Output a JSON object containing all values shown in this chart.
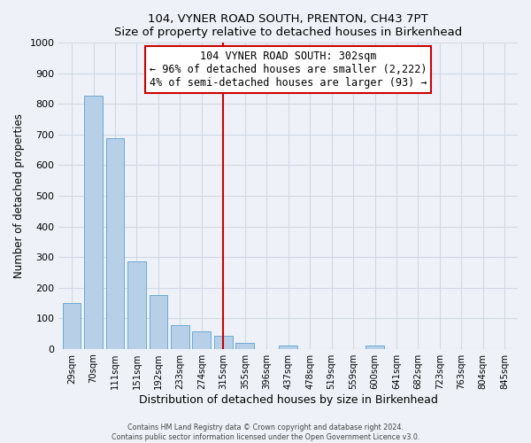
{
  "title": "104, VYNER ROAD SOUTH, PRENTON, CH43 7PT",
  "subtitle": "Size of property relative to detached houses in Birkenhead",
  "xlabel": "Distribution of detached houses by size in Birkenhead",
  "ylabel": "Number of detached properties",
  "bar_labels": [
    "29sqm",
    "70sqm",
    "111sqm",
    "151sqm",
    "192sqm",
    "233sqm",
    "274sqm",
    "315sqm",
    "355sqm",
    "396sqm",
    "437sqm",
    "478sqm",
    "519sqm",
    "559sqm",
    "600sqm",
    "641sqm",
    "682sqm",
    "723sqm",
    "763sqm",
    "804sqm",
    "845sqm"
  ],
  "bar_heights": [
    150,
    828,
    688,
    285,
    175,
    78,
    57,
    43,
    18,
    0,
    10,
    0,
    0,
    0,
    10,
    0,
    0,
    0,
    0,
    0,
    0
  ],
  "bar_color": "#b8cfe8",
  "bar_edge_color": "#6aaad4",
  "vline_x": 7.0,
  "vline_color": "#cc0000",
  "annotation_title": "104 VYNER ROAD SOUTH: 302sqm",
  "annotation_line1": "← 96% of detached houses are smaller (2,222)",
  "annotation_line2": "4% of semi-detached houses are larger (93) →",
  "annotation_box_color": "#ffffff",
  "annotation_box_edge": "#cc0000",
  "ylim": [
    0,
    1000
  ],
  "yticks": [
    0,
    100,
    200,
    300,
    400,
    500,
    600,
    700,
    800,
    900,
    1000
  ],
  "footer1": "Contains HM Land Registry data © Crown copyright and database right 2024.",
  "footer2": "Contains public sector information licensed under the Open Government Licence v3.0.",
  "grid_color": "#d0d8e4",
  "bg_color": "#eef2f8"
}
